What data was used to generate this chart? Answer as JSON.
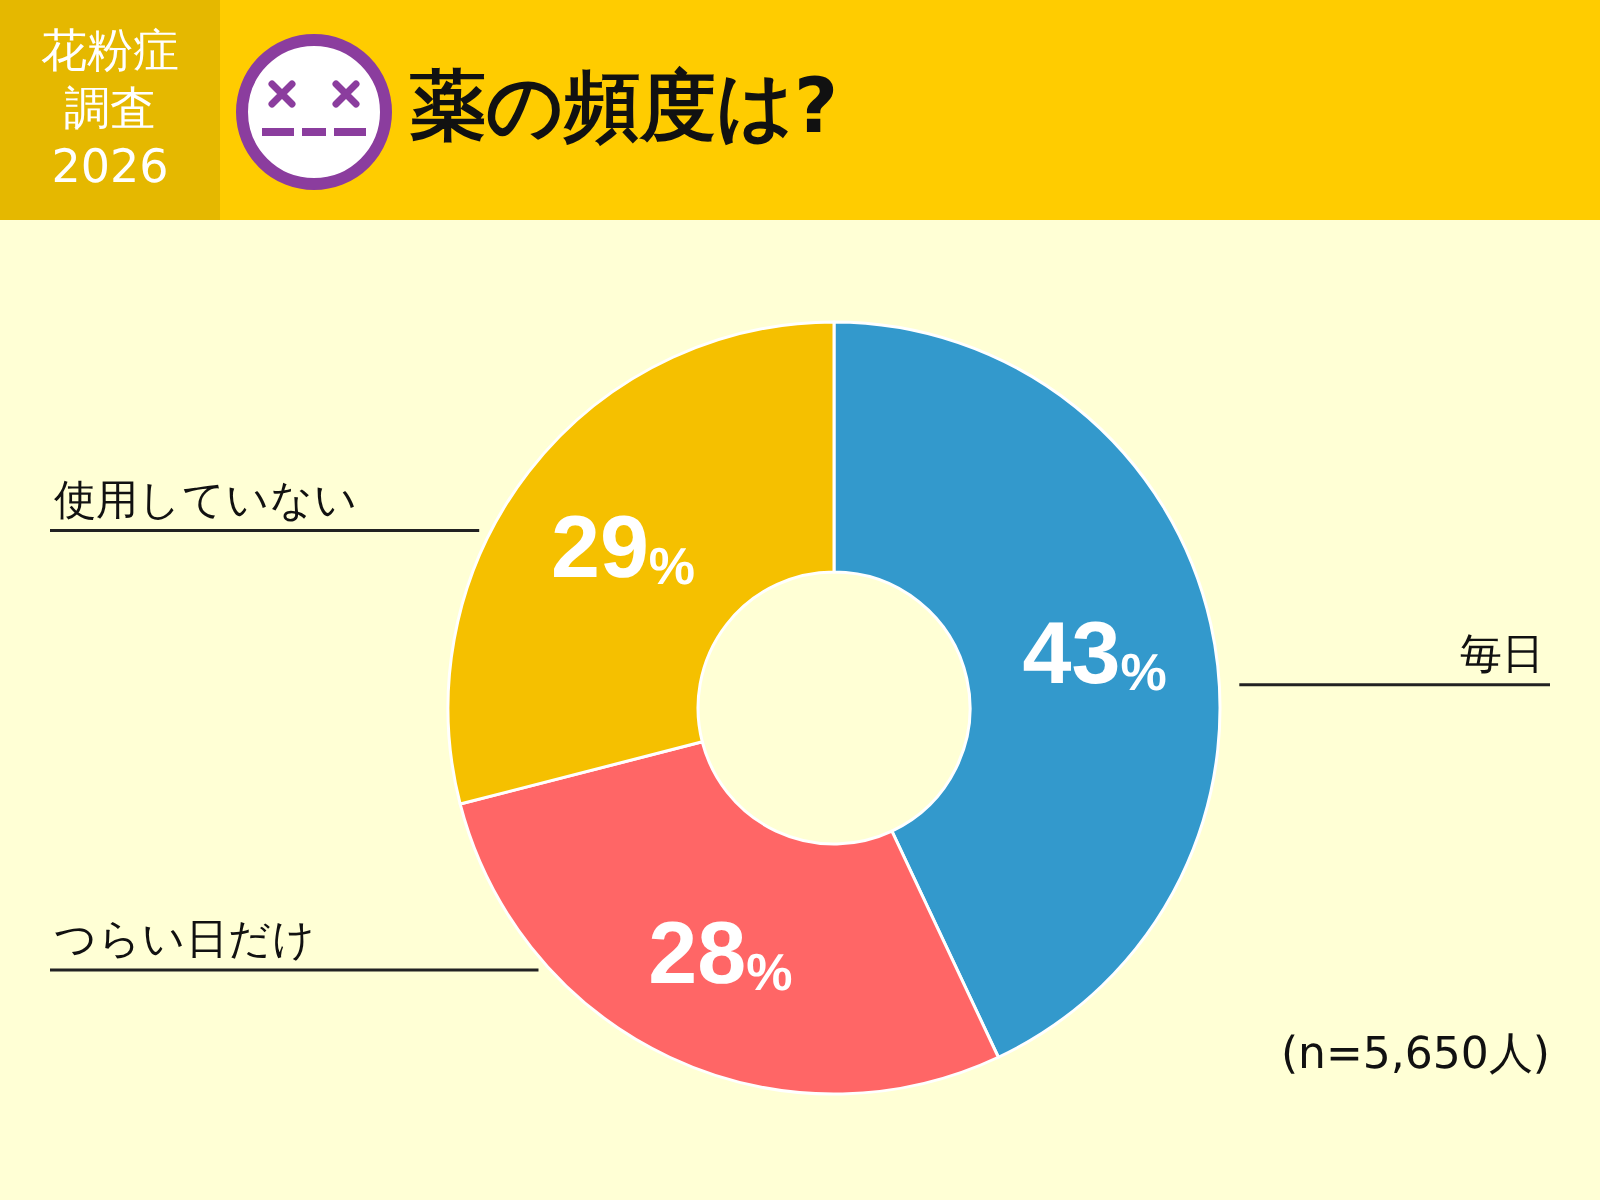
{
  "chart_data": {
    "type": "donut",
    "title": "薬の頻度は?",
    "subtitle": "花粉症調査2026",
    "categories": [
      "毎日",
      "つらい日だけ",
      "使用していない"
    ],
    "values": [
      43,
      28,
      29
    ],
    "colors": [
      "#3399cc",
      "#ff6666",
      "#f5c000"
    ],
    "value_labels": [
      "43%",
      "28%",
      "29%"
    ],
    "annotations": [
      "(n=5,650人)"
    ]
  }
}
